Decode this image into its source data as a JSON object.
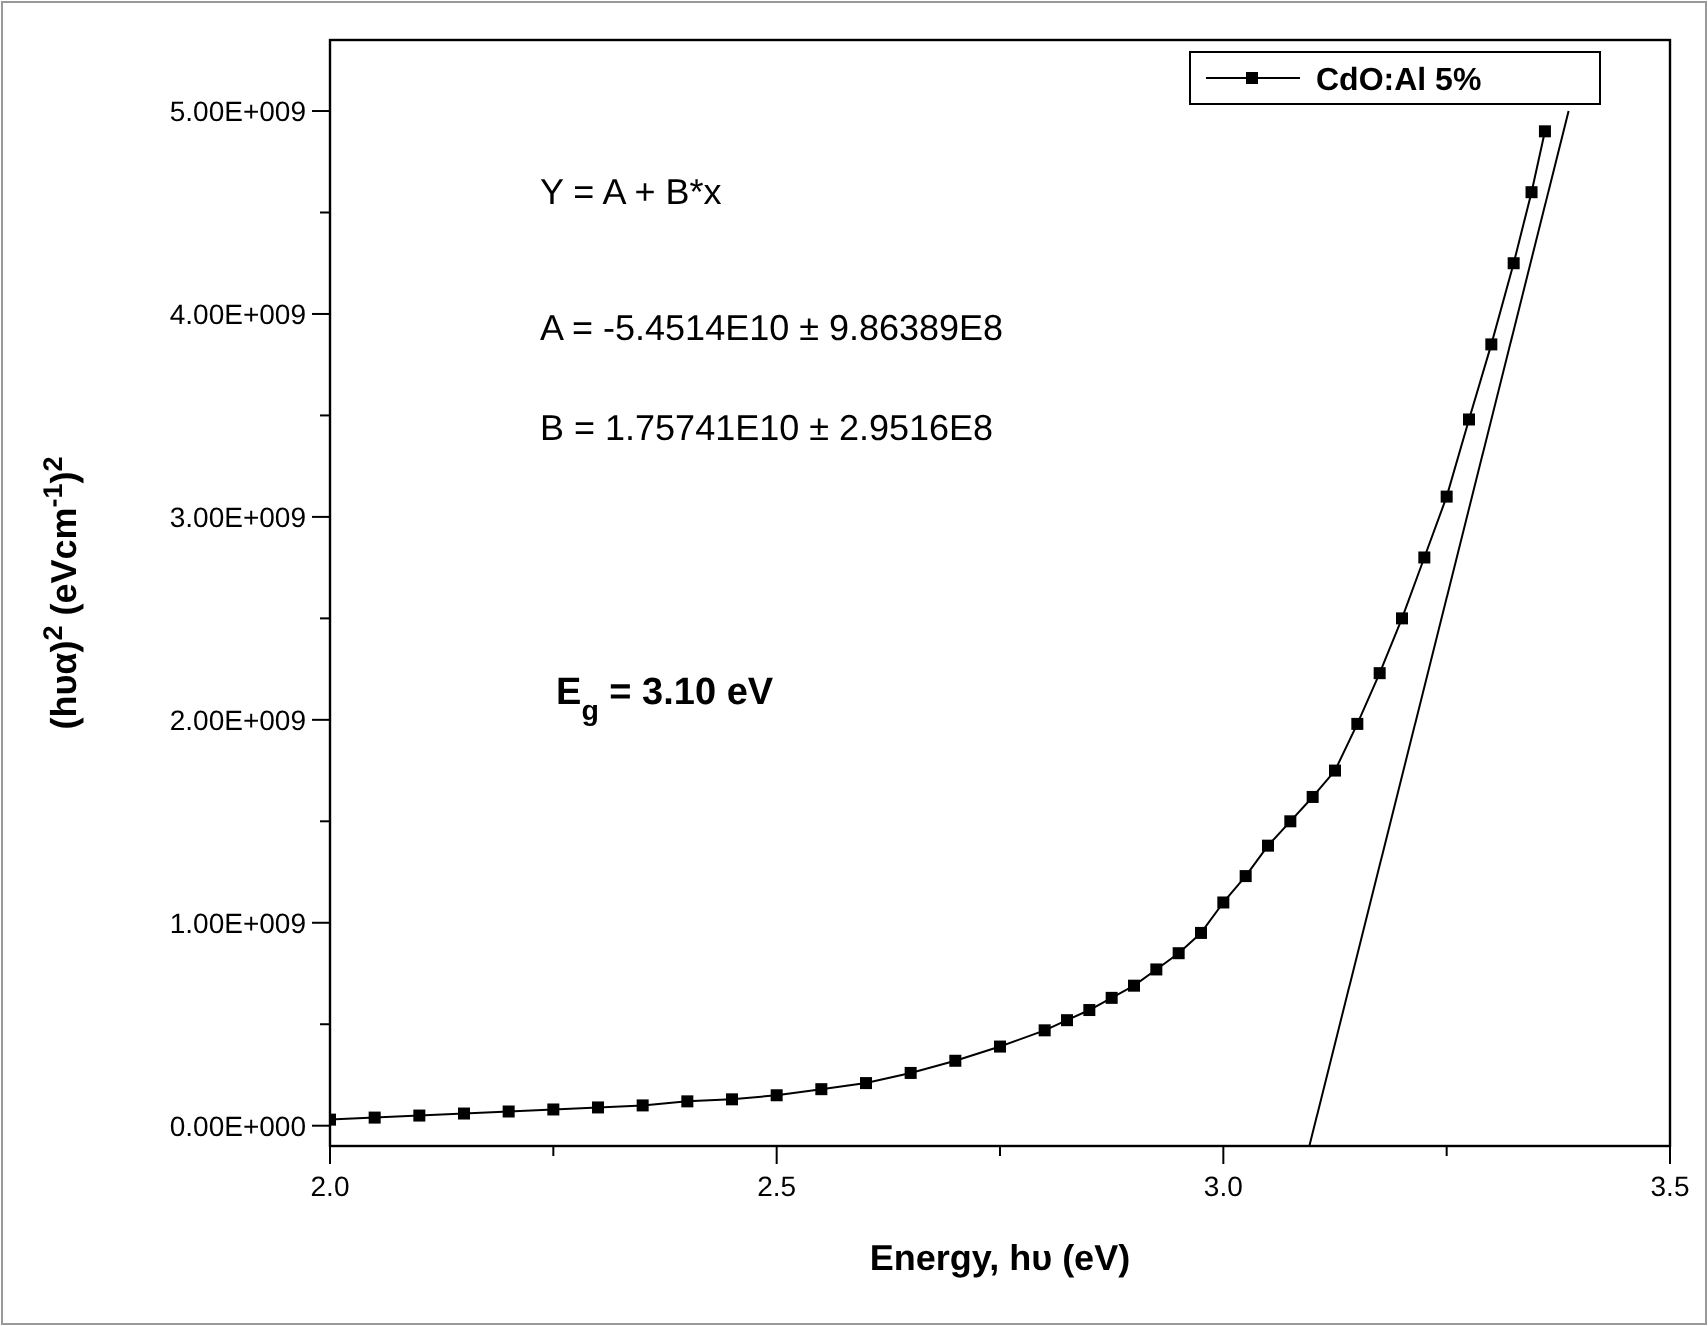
{
  "chart_data": {
    "type": "line",
    "xlabel": "Energy, hυ (eV)",
    "ylabel": "(hυα)$^{2}$ (eVcm$^{-1}$)$^{2}$",
    "xlim": [
      2.0,
      3.5
    ],
    "xticks": [
      {
        "value": 2.0,
        "label": "2.0"
      },
      {
        "value": 2.25,
        "label": null
      },
      {
        "value": 2.5,
        "label": "2.5"
      },
      {
        "value": 2.75,
        "label": null
      },
      {
        "value": 3.0,
        "label": "3.0"
      },
      {
        "value": 3.25,
        "label": null
      },
      {
        "value": 3.5,
        "label": "3.5"
      }
    ],
    "ylim": [
      -100000000,
      5350000000
    ],
    "yticks": [
      {
        "value": 0,
        "label": "0.00E+000"
      },
      {
        "value": 500000000,
        "label": null
      },
      {
        "value": 1000000000,
        "label": "1.00E+009"
      },
      {
        "value": 1500000000,
        "label": null
      },
      {
        "value": 2000000000,
        "label": "2.00E+009"
      },
      {
        "value": 2500000000,
        "label": null
      },
      {
        "value": 3000000000,
        "label": "3.00E+009"
      },
      {
        "value": 3500000000,
        "label": null
      },
      {
        "value": 4000000000,
        "label": "4.00E+009"
      },
      {
        "value": 4500000000,
        "label": null
      },
      {
        "value": 5000000000,
        "label": "5.00E+009"
      }
    ],
    "grid": false,
    "legend": "top right",
    "series": [
      {
        "name": "CdO:Al 5%",
        "color": "#000000",
        "marker": "square",
        "x": [
          2.0,
          2.05,
          2.1,
          2.15,
          2.2,
          2.25,
          2.3,
          2.35,
          2.4,
          2.45,
          2.5,
          2.55,
          2.6,
          2.65,
          2.7,
          2.75,
          2.8,
          2.825,
          2.85,
          2.875,
          2.9,
          2.925,
          2.95,
          2.975,
          3.0,
          3.025,
          3.05,
          3.075,
          3.1,
          3.125,
          3.15,
          3.175,
          3.2,
          3.225,
          3.25,
          3.275,
          3.3,
          3.325,
          3.345,
          3.36
        ],
        "values": [
          30000000,
          40000000,
          50000000,
          60000000,
          70000000,
          80000000,
          90000000,
          100000000,
          120000000,
          130000000,
          150000000,
          180000000,
          210000000,
          260000000,
          320000000,
          390000000,
          470000000,
          520000000,
          570000000,
          630000000,
          690000000,
          770000000,
          850000000,
          950000000,
          1100000000,
          1230000000,
          1380000000,
          1500000000,
          1620000000,
          1750000000,
          1980000000,
          2230000000,
          2500000000,
          2800000000,
          3100000000,
          3480000000,
          3850000000,
          4250000000,
          4600000000,
          4900000000
        ]
      },
      {
        "type": "line",
        "color": "#000000",
        "marker": "none",
        "x": [
          3.0963,
          3.3865
        ],
        "values": [
          -100000000,
          5000000000
        ]
      }
    ],
    "annotations": [
      "Y = A + B*x",
      "A = -5.4514E10 ± 9.86389E8",
      "B = 1.75741E10 ± 2.9516E8",
      "E$_{g}$ = 3.10 eV"
    ]
  }
}
